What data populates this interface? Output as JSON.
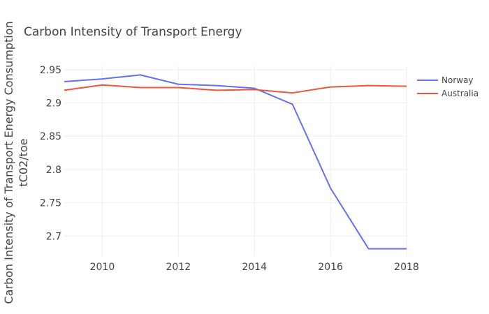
{
  "chart_data": {
    "type": "line",
    "title": "Carbon Intensity of Transport Energy",
    "ylabel_line1": "Carbon Intensity of Transport Energy Consumption",
    "ylabel_line2": "tC02/toe",
    "xlabel": "",
    "xlim": [
      2009,
      2018
    ],
    "ylim": [
      2.67,
      2.955
    ],
    "x_ticks": [
      2010,
      2012,
      2014,
      2016,
      2018
    ],
    "y_ticks": [
      2.7,
      2.75,
      2.8,
      2.85,
      2.9,
      2.95
    ],
    "y_tick_labels": [
      "2.7",
      "2.75",
      "2.8",
      "2.85",
      "2.9",
      "2.95"
    ],
    "x": [
      2009,
      2010,
      2011,
      2012,
      2013,
      2014,
      2015,
      2016,
      2017,
      2018
    ],
    "series": [
      {
        "name": "Norway",
        "color": "#636efa",
        "values": [
          2.932,
          2.936,
          2.942,
          2.928,
          2.926,
          2.922,
          2.898,
          2.772,
          2.681,
          2.681
        ]
      },
      {
        "name": "Australia",
        "color": "#ef553b",
        "values": [
          2.919,
          2.927,
          2.923,
          2.923,
          2.919,
          2.92,
          2.915,
          2.924,
          2.926,
          2.925
        ]
      }
    ],
    "legend_position": "top-right",
    "grid": true
  }
}
